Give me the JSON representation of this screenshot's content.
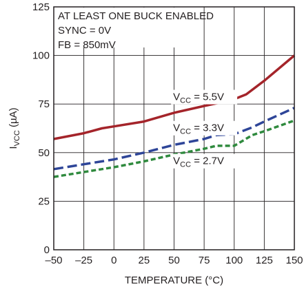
{
  "chart_data": {
    "type": "line",
    "xlabel": "TEMPERATURE (°C)",
    "ylabel_main": "I",
    "ylabel_sub": "VCC",
    "ylabel_unit": " (µA)",
    "xlim": [
      -50,
      150
    ],
    "ylim": [
      0,
      125
    ],
    "xticks": [
      -50,
      -25,
      0,
      25,
      50,
      75,
      100,
      125,
      150
    ],
    "xtick_labels": [
      "–50",
      "–25",
      "0",
      "25",
      "50",
      "75",
      "100",
      "125",
      "150"
    ],
    "yticks": [
      0,
      25,
      50,
      75,
      100,
      125
    ],
    "ytick_labels": [
      "0",
      "25",
      "50",
      "75",
      "100",
      "125"
    ],
    "grid": true,
    "annotations": [
      "AT LEAST ONE BUCK ENABLED",
      "SYNC = 0V",
      "FB = 850mV"
    ],
    "series": [
      {
        "label_main": "V",
        "label_sub": "CC",
        "label_value": " = 5.5V",
        "color": "#a4242a",
        "dash": "solid",
        "x": [
          -50,
          -25,
          -10,
          0,
          25,
          50,
          75,
          90,
          100,
          110,
          125,
          150
        ],
        "y": [
          57,
          60,
          62.5,
          63.5,
          66,
          70.5,
          74,
          76,
          77.5,
          80,
          87,
          100
        ]
      },
      {
        "label_main": "V",
        "label_sub": "CC",
        "label_value": " = 3.3V",
        "color": "#2e4598",
        "dash": "long-dash",
        "x": [
          -50,
          -25,
          0,
          25,
          50,
          75,
          85,
          100,
          115,
          125,
          150
        ],
        "y": [
          41.5,
          44,
          46.5,
          50,
          54,
          57,
          59,
          59.5,
          63,
          66,
          73
        ]
      },
      {
        "label_main": "V",
        "label_sub": "CC",
        "label_value": " = 2.7V",
        "color": "#2f8a3e",
        "dash": "short-dash",
        "x": [
          -50,
          -25,
          0,
          25,
          50,
          75,
          85,
          100,
          115,
          125,
          150
        ],
        "y": [
          37.5,
          40,
          42.5,
          45.5,
          49,
          52,
          53.5,
          53.5,
          59,
          61,
          66.5
        ]
      }
    ]
  }
}
